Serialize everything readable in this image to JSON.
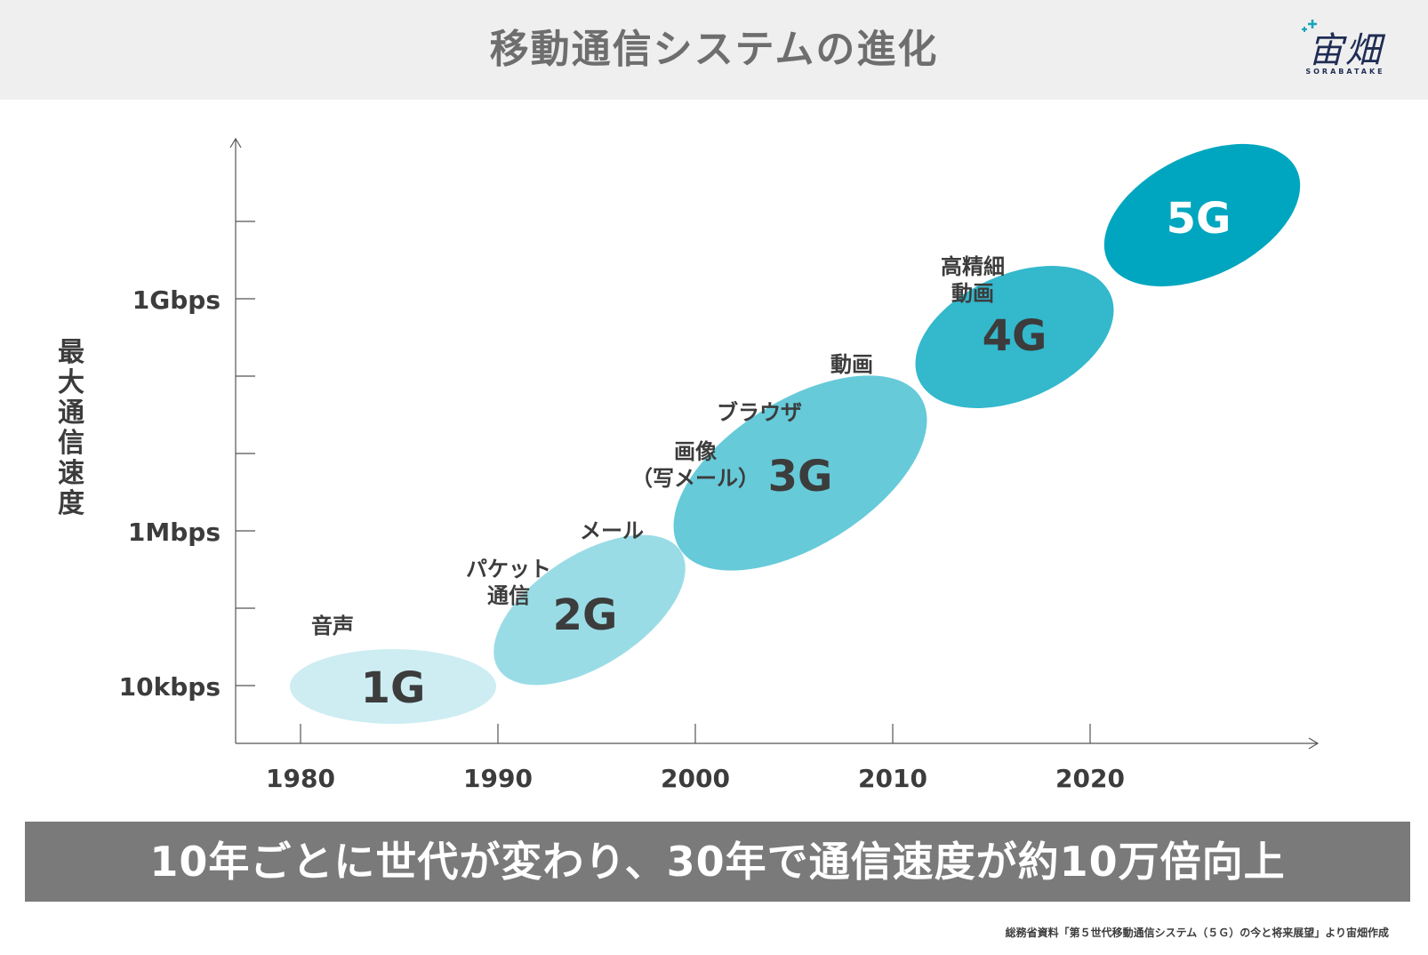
{
  "title": "移動通信システムの進化",
  "logo": {
    "main": "宙畑",
    "sub": "SORABATAKE"
  },
  "y_axis_title": "最大通信速度",
  "chart_data": {
    "type": "diagram",
    "y_ticks": [
      "10kbps",
      "1Mbps",
      "1Gbps"
    ],
    "x_ticks": [
      "1980",
      "1990",
      "2000",
      "2010",
      "2020"
    ],
    "generations": [
      {
        "label": "1G",
        "color": "#cdedf3"
      },
      {
        "label": "2G",
        "color": "#9adce6"
      },
      {
        "label": "3G",
        "color": "#66cad9"
      },
      {
        "label": "4G",
        "color": "#33b8cc"
      },
      {
        "label": "5G",
        "color": "#00a6bf"
      }
    ],
    "features": [
      {
        "lines": [
          "音声"
        ]
      },
      {
        "lines": [
          "パケット",
          "通信"
        ]
      },
      {
        "lines": [
          "メール"
        ]
      },
      {
        "lines": [
          "画像",
          "（写メール）"
        ]
      },
      {
        "lines": [
          "ブラウザ"
        ]
      },
      {
        "lines": [
          "動画"
        ]
      },
      {
        "lines": [
          "高精細",
          "動画"
        ]
      }
    ]
  },
  "banner": "10年ごとに世代が変わり、30年で通信速度が約10万倍向上",
  "source": "総務省資料「第５世代移動通信システム（５Ｇ）の今と将来展望」より宙畑作成"
}
